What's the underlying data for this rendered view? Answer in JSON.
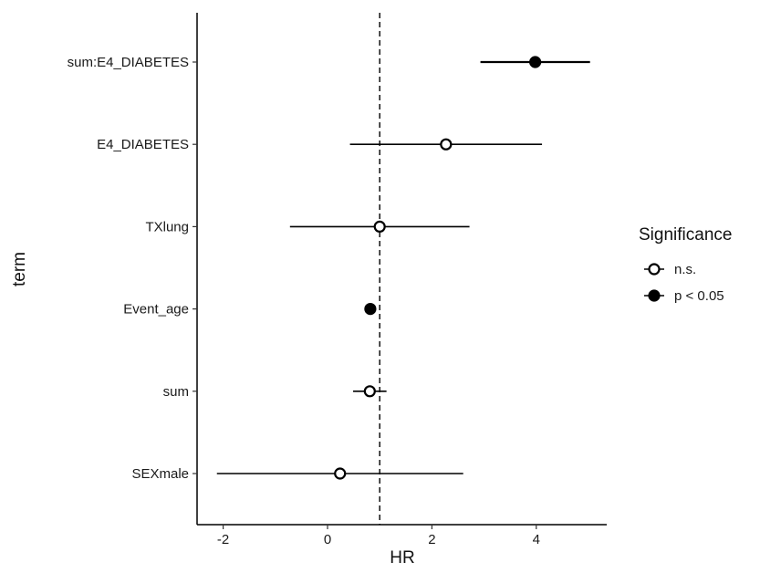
{
  "chart_data": {
    "type": "scatter",
    "title": "",
    "xlabel": "HR",
    "ylabel": "term",
    "xlim": [
      -2.5,
      5.35
    ],
    "x_ticks": [
      -2,
      0,
      2,
      4
    ],
    "reference_line": {
      "x": 1,
      "style": "dashed"
    },
    "grid": false,
    "terms": [
      "sum:E4_DIABETES",
      "E4_DIABETES",
      "TXlung",
      "Event_age",
      "sum",
      "SEXmale"
    ],
    "points": [
      {
        "term": "sum:E4_DIABETES",
        "estimate": 3.98,
        "lower": 2.93,
        "upper": 5.03,
        "significance": "p < 0.05"
      },
      {
        "term": "E4_DIABETES",
        "estimate": 2.27,
        "lower": 0.43,
        "upper": 4.11,
        "significance": "n.s."
      },
      {
        "term": "TXlung",
        "estimate": 1.0,
        "lower": -0.72,
        "upper": 2.72,
        "significance": "n.s."
      },
      {
        "term": "Event_age",
        "estimate": 0.82,
        "lower": 0.8,
        "upper": 0.84,
        "significance": "p < 0.05"
      },
      {
        "term": "sum",
        "estimate": 0.81,
        "lower": 0.49,
        "upper": 1.13,
        "significance": "n.s."
      },
      {
        "term": "SEXmale",
        "estimate": 0.24,
        "lower": -2.12,
        "upper": 2.6,
        "significance": "n.s."
      }
    ],
    "legend": {
      "title": "Significance",
      "placement": "right",
      "entries": [
        {
          "label": "n.s.",
          "marker": "open-circle"
        },
        {
          "label": "p < 0.05",
          "marker": "filled-circle"
        }
      ]
    }
  }
}
